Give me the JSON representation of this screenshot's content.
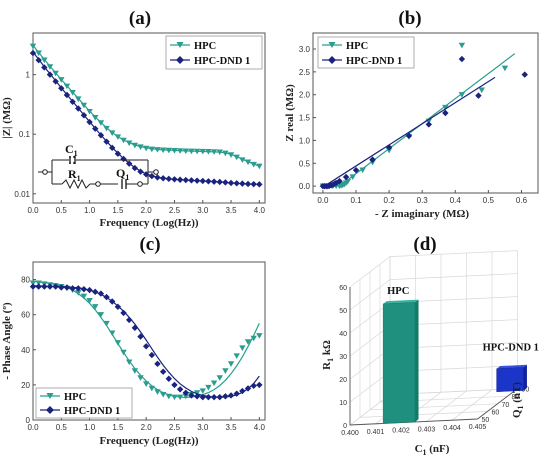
{
  "colors": {
    "hpc": "#2a9d8f",
    "dnd": "#1a237e",
    "hpc_bar": "#1f8f7e",
    "dnd_bar": "#1a35c8"
  },
  "chart_data": [
    {
      "id": "a",
      "type": "line",
      "panel_label": "(a)",
      "xlabel": "Frequency (Log(Hz))",
      "ylabel": "|Z| (MΩ)",
      "xlim": [
        0,
        4.1
      ],
      "ylim": [
        0.007,
        5
      ],
      "yscale": "log",
      "xticks": [
        "0.0",
        "0.5",
        "1.0",
        "1.5",
        "2.0",
        "2.5",
        "3.0",
        "3.5",
        "4.0"
      ],
      "yticks": [
        {
          "v": 0.01,
          "label": "0.01"
        },
        {
          "v": 0.1,
          "label": "0.1"
        },
        {
          "v": 1,
          "label": "1"
        }
      ],
      "legend": "top-right",
      "circuit": {
        "c1": "C",
        "c1_sub": "1",
        "r1": "R",
        "r1_sub": "1",
        "q1": "Q",
        "q1_sub": "1"
      },
      "series": [
        {
          "name": "HPC",
          "marker": "triangle-down",
          "color_key": "hpc",
          "x": [
            0,
            0.1,
            0.2,
            0.3,
            0.4,
            0.5,
            0.6,
            0.7,
            0.8,
            0.9,
            1.0,
            1.1,
            1.2,
            1.3,
            1.4,
            1.5,
            1.6,
            1.7,
            1.8,
            1.9,
            2.0,
            2.1,
            2.2,
            2.3,
            2.4,
            2.5,
            2.6,
            2.7,
            2.8,
            2.9,
            3.0,
            3.1,
            3.2,
            3.3,
            3.4,
            3.5,
            3.6,
            3.7,
            3.8,
            3.9,
            4.0
          ],
          "y": [
            3.0,
            2.3,
            1.75,
            1.35,
            1.05,
            0.82,
            0.64,
            0.5,
            0.39,
            0.305,
            0.24,
            0.19,
            0.155,
            0.125,
            0.105,
            0.09,
            0.079,
            0.071,
            0.065,
            0.061,
            0.058,
            0.056,
            0.055,
            0.054,
            0.0535,
            0.053,
            0.0525,
            0.052,
            0.0518,
            0.0515,
            0.0512,
            0.051,
            0.0505,
            0.05,
            0.048,
            0.045,
            0.041,
            0.037,
            0.034,
            0.031,
            0.029
          ],
          "fit_y": [
            3.1,
            2.35,
            1.8,
            1.38,
            1.07,
            0.83,
            0.65,
            0.51,
            0.4,
            0.31,
            0.245,
            0.195,
            0.158,
            0.128,
            0.107,
            0.091,
            0.08,
            0.072,
            0.066,
            0.062,
            0.059,
            0.057,
            0.0555,
            0.0545,
            0.054,
            0.0535,
            0.053,
            0.0525,
            0.052,
            0.0517,
            0.0513,
            0.051,
            0.0505,
            0.0498,
            0.0485,
            0.046,
            0.042,
            0.038,
            0.0345,
            0.0315,
            0.0292
          ]
        },
        {
          "name": "HPC-DND 1",
          "marker": "diamond",
          "color_key": "dnd",
          "x": [
            0,
            0.1,
            0.2,
            0.3,
            0.4,
            0.5,
            0.6,
            0.7,
            0.8,
            0.9,
            1.0,
            1.1,
            1.2,
            1.3,
            1.4,
            1.5,
            1.6,
            1.7,
            1.8,
            1.9,
            2.0,
            2.1,
            2.2,
            2.3,
            2.4,
            2.5,
            2.6,
            2.7,
            2.8,
            2.9,
            3.0,
            3.1,
            3.2,
            3.3,
            3.4,
            3.5,
            3.6,
            3.7,
            3.8,
            3.9,
            4.0
          ],
          "y": [
            2.3,
            1.75,
            1.32,
            1.0,
            0.77,
            0.59,
            0.455,
            0.35,
            0.27,
            0.208,
            0.16,
            0.124,
            0.096,
            0.075,
            0.059,
            0.047,
            0.0385,
            0.032,
            0.027,
            0.0235,
            0.0212,
            0.0198,
            0.0188,
            0.0182,
            0.0178,
            0.0175,
            0.0172,
            0.017,
            0.0168,
            0.0166,
            0.0164,
            0.0162,
            0.016,
            0.0158,
            0.0155,
            0.0152,
            0.015,
            0.0148,
            0.0146,
            0.0145,
            0.0144
          ],
          "fit_y": [
            2.4,
            1.8,
            1.36,
            1.03,
            0.79,
            0.6,
            0.46,
            0.355,
            0.274,
            0.21,
            0.162,
            0.125,
            0.097,
            0.076,
            0.06,
            0.048,
            0.039,
            0.0325,
            0.0275,
            0.024,
            0.0215,
            0.02,
            0.019,
            0.0183,
            0.0178,
            0.0175,
            0.0172,
            0.017,
            0.0168,
            0.0166,
            0.0164,
            0.0162,
            0.016,
            0.0158,
            0.0155,
            0.0152,
            0.015,
            0.0148,
            0.0146,
            0.0145,
            0.0144
          ]
        }
      ]
    },
    {
      "id": "b",
      "type": "scatter",
      "panel_label": "(b)",
      "xlabel": "- Z imaginary (MΩ)",
      "ylabel": "Z real (MΩ)",
      "xlim": [
        -0.03,
        0.65
      ],
      "ylim": [
        -0.15,
        3.35
      ],
      "xticks": [
        "0.0",
        "0.1",
        "0.2",
        "0.3",
        "0.4",
        "0.5",
        "0.6"
      ],
      "yticks": [
        "0.0",
        "0.5",
        "1.0",
        "1.5",
        "2.0",
        "2.5",
        "3.0"
      ],
      "legend": "top-left",
      "series": [
        {
          "name": "HPC",
          "marker": "triangle-down",
          "color_key": "hpc",
          "x": [
            0.0,
            0.01,
            0.02,
            0.03,
            0.04,
            0.05,
            0.055,
            0.06,
            0.065,
            0.07,
            0.075,
            0.09,
            0.12,
            0.15,
            0.2,
            0.26,
            0.32,
            0.37,
            0.42,
            0.42,
            0.48,
            0.55
          ],
          "y": [
            0.0,
            0.0,
            0.0,
            0.0,
            0.0,
            0.0,
            0.01,
            0.02,
            0.04,
            0.07,
            0.1,
            0.2,
            0.35,
            0.52,
            0.78,
            1.08,
            1.42,
            1.72,
            3.08,
            2.0,
            2.1,
            2.58
          ],
          "fit": {
            "x": [
              0.05,
              0.58
            ],
            "y": [
              0.0,
              2.9
            ]
          }
        },
        {
          "name": "HPC-DND 1",
          "marker": "diamond",
          "color_key": "dnd",
          "x": [
            0.0,
            0.005,
            0.01,
            0.015,
            0.02,
            0.025,
            0.03,
            0.035,
            0.04,
            0.05,
            0.07,
            0.1,
            0.15,
            0.2,
            0.26,
            0.32,
            0.37,
            0.42,
            0.47,
            0.61
          ],
          "y": [
            0.0,
            0.0,
            0.0,
            0.0,
            0.01,
            0.02,
            0.03,
            0.05,
            0.07,
            0.11,
            0.2,
            0.35,
            0.58,
            0.85,
            1.1,
            1.35,
            1.6,
            2.78,
            1.98,
            2.44
          ],
          "fit": {
            "x": [
              0.0,
              0.52
            ],
            "y": [
              -0.02,
              2.38
            ]
          }
        }
      ]
    },
    {
      "id": "c",
      "type": "line",
      "panel_label": "(c)",
      "xlabel": "Frequency (Log(Hz))",
      "ylabel": "- Phase Angle (º)",
      "xlim": [
        0,
        4.1
      ],
      "ylim": [
        0,
        90
      ],
      "xticks": [
        "0.0",
        "0.5",
        "1.0",
        "1.5",
        "2.0",
        "2.5",
        "3.0",
        "3.5",
        "4.0"
      ],
      "yticks": [
        "0",
        "20",
        "40",
        "60",
        "80"
      ],
      "legend": "bottom-left",
      "series": [
        {
          "name": "HPC",
          "marker": "triangle-down",
          "color_key": "hpc",
          "x": [
            0,
            0.1,
            0.2,
            0.3,
            0.4,
            0.5,
            0.6,
            0.7,
            0.8,
            0.9,
            1.0,
            1.1,
            1.2,
            1.3,
            1.4,
            1.5,
            1.6,
            1.7,
            1.8,
            1.9,
            2.0,
            2.1,
            2.2,
            2.3,
            2.4,
            2.5,
            2.6,
            2.7,
            2.8,
            2.9,
            3.0,
            3.1,
            3.2,
            3.3,
            3.4,
            3.5,
            3.6,
            3.7,
            3.8,
            3.9,
            4.0
          ],
          "y": [
            78,
            78,
            77.5,
            77,
            76.5,
            76,
            75,
            74,
            72.5,
            70.5,
            68,
            64.5,
            60,
            55,
            49.5,
            44,
            38.5,
            33,
            28,
            24,
            20.5,
            18,
            16,
            14.5,
            13.5,
            13,
            13,
            13.5,
            14.5,
            15.5,
            16.5,
            18.5,
            21,
            24,
            28,
            32,
            36.5,
            41,
            44.5,
            46.5,
            48
          ],
          "fit_y": [
            79,
            78.7,
            78.3,
            77.8,
            77.2,
            76.4,
            75.4,
            74,
            72,
            69.5,
            66.5,
            62.8,
            58.5,
            53.8,
            48.8,
            43.6,
            38.5,
            33.7,
            29.3,
            25.5,
            22.2,
            19.5,
            17.3,
            15.6,
            14.3,
            13.5,
            13,
            12.9,
            13.1,
            13.6,
            14.4,
            15.6,
            17.3,
            19.6,
            22.6,
            26.3,
            30.8,
            36,
            41.8,
            48.2,
            55
          ]
        },
        {
          "name": "HPC-DND 1",
          "marker": "diamond",
          "color_key": "dnd",
          "x": [
            0,
            0.1,
            0.2,
            0.3,
            0.4,
            0.5,
            0.6,
            0.7,
            0.8,
            0.9,
            1.0,
            1.1,
            1.2,
            1.3,
            1.4,
            1.5,
            1.6,
            1.7,
            1.8,
            1.9,
            2.0,
            2.1,
            2.2,
            2.3,
            2.4,
            2.5,
            2.6,
            2.7,
            2.8,
            2.9,
            3.0,
            3.1,
            3.2,
            3.3,
            3.4,
            3.5,
            3.6,
            3.7,
            3.8,
            3.9,
            4.0
          ],
          "y": [
            76,
            76,
            76,
            76,
            76,
            75.5,
            75.5,
            75,
            75,
            74.5,
            74,
            73,
            72,
            70,
            67.5,
            64.5,
            61,
            57,
            52.5,
            47.5,
            42,
            37,
            32,
            27.5,
            23.5,
            20,
            17.5,
            15.5,
            14,
            13.5,
            13,
            13,
            13,
            13,
            13.5,
            14,
            15,
            16.5,
            18,
            19.5,
            20
          ],
          "fit_y": [
            76.5,
            76.4,
            76.3,
            76.2,
            76.1,
            76,
            75.8,
            75.6,
            75.3,
            74.8,
            74,
            73,
            71.6,
            69.8,
            67.6,
            65,
            62,
            58.5,
            54.6,
            50.2,
            45.5,
            40.6,
            35.8,
            31.3,
            27.2,
            23.6,
            20.6,
            18.2,
            16.3,
            14.9,
            14,
            13.4,
            13.1,
            13,
            13.1,
            13.5,
            14.3,
            15.7,
            17.8,
            20.8,
            25
          ]
        }
      ]
    },
    {
      "id": "d",
      "type": "bar",
      "panel_label": "(d)",
      "xlabel": "C",
      "xlabel_sub": "1",
      "xlabel_unit": " (nF)",
      "ylabel": "R",
      "ylabel_sub": "1",
      "ylabel_unit": " kΩ",
      "zlabel": "Q",
      "zlabel_sub": "1",
      "zlabel_unit": " (nT)",
      "xticks": [
        "0.400",
        "0.401",
        "0.402",
        "0.403",
        "0.404",
        "0.405"
      ],
      "yticks": [
        "0",
        "10",
        "20",
        "30",
        "40",
        "50",
        "60"
      ],
      "zticks": [
        "50",
        "60",
        "70",
        "80",
        "90"
      ],
      "ylim": [
        0,
        60
      ],
      "bars": [
        {
          "name": "HPC",
          "label": "HPC",
          "c1": 0.4013,
          "r1": 52,
          "q1": 50,
          "color_key": "hpc_bar"
        },
        {
          "name": "HPC-DND 1",
          "label": "HPC-DND 1",
          "c1": 0.4043,
          "r1": 10,
          "q1": 87,
          "color_key": "dnd_bar"
        }
      ]
    }
  ]
}
